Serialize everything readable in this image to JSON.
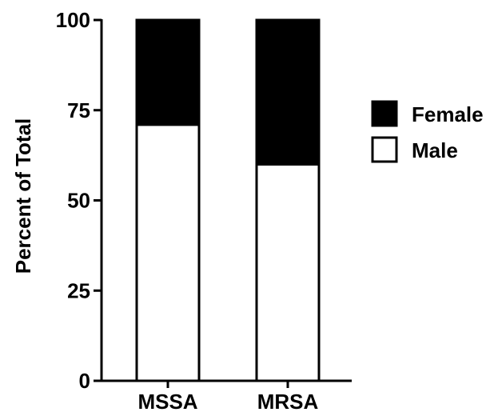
{
  "chart_data": {
    "type": "bar",
    "stacked": true,
    "categories": [
      "MSSA",
      "MRSA"
    ],
    "series": [
      {
        "name": "Male",
        "values": [
          71,
          60
        ],
        "fill": "#ffffff"
      },
      {
        "name": "Female",
        "values": [
          29,
          40
        ],
        "fill": "#000000"
      }
    ],
    "legend_order": [
      "Female",
      "Male"
    ],
    "ylabel": "Percent of Total",
    "xlabel": "",
    "ylim": [
      0,
      100
    ],
    "yticks": [
      "0",
      "25",
      "50",
      "75",
      "100"
    ],
    "grid": false,
    "legend_position": "right",
    "colors": {
      "stroke": "#000000",
      "background": "#ffffff"
    }
  }
}
